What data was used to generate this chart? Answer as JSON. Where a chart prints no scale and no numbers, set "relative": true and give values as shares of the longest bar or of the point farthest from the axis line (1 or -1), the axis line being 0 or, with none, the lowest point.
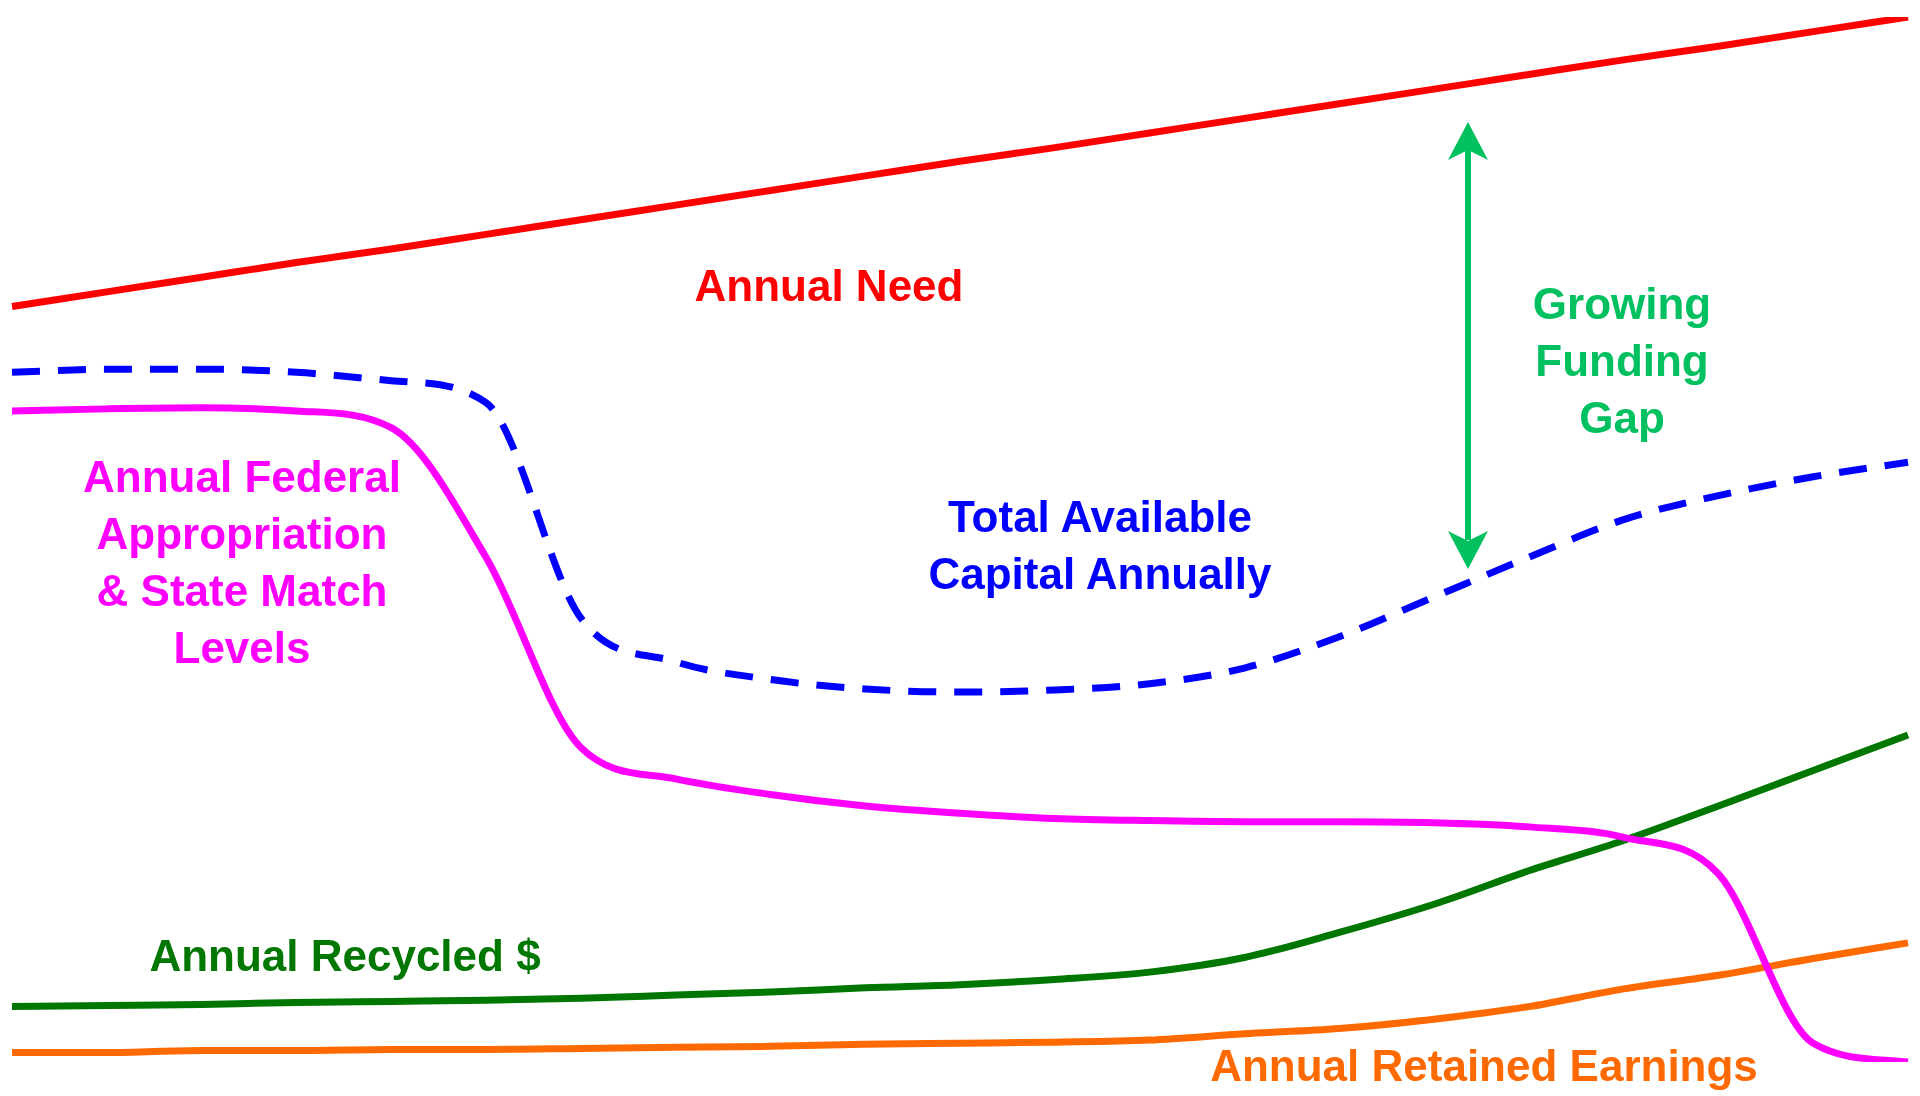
{
  "chart_data": {
    "type": "line",
    "relative": true,
    "legend": false,
    "categories": [
      null,
      null,
      null,
      null,
      null,
      null,
      null,
      null,
      null,
      null,
      null,
      null,
      null,
      null,
      null,
      null,
      null,
      null,
      null,
      null,
      null
    ],
    "series": [
      {
        "name": "Annual Need",
        "color": "#ff0000",
        "values": [
          0.723,
          0.737,
          0.751,
          0.765,
          0.778,
          0.792,
          0.806,
          0.82,
          0.834,
          0.848,
          0.862,
          0.875,
          0.889,
          0.903,
          0.917,
          0.931,
          0.945,
          0.959,
          0.972,
          0.986,
          1
        ]
      },
      {
        "name": "Total Available Capital Annually",
        "color": "#0000ff",
        "line_style": "dashed",
        "values": [
          0.66,
          0.663,
          0.663,
          0.66,
          0.652,
          0.631,
          0.425,
          0.383,
          0.366,
          0.357,
          0.354,
          0.356,
          0.362,
          0.377,
          0.407,
          0.445,
          0.483,
          0.519,
          0.542,
          0.56,
          0.574
        ]
      },
      {
        "name": "Annual Federal Appropriation & State Match Levels",
        "color": "#ff00ff",
        "values": [
          0.623,
          0.625,
          0.626,
          0.623,
          0.607,
          0.483,
          0.301,
          0.271,
          0.256,
          0.245,
          0.238,
          0.233,
          0.231,
          0.23,
          0.23,
          0.229,
          0.225,
          0.215,
          0.18,
          0.018,
          0
        ]
      },
      {
        "name": "Annual Recycled $",
        "color": "#007700",
        "values": [
          0.053,
          0.054,
          0.055,
          0.057,
          0.058,
          0.059,
          0.061,
          0.064,
          0.067,
          0.071,
          0.074,
          0.079,
          0.086,
          0.1,
          0.124,
          0.151,
          0.183,
          0.212,
          0.245,
          0.279,
          0.313
        ]
      },
      {
        "name": "Annual Retained Earnings",
        "color": "#ff6a00",
        "values": [
          0.009,
          0.009,
          0.011,
          0.011,
          0.012,
          0.012,
          0.013,
          0.014,
          0.015,
          0.017,
          0.018,
          0.019,
          0.021,
          0.027,
          0.032,
          0.041,
          0.053,
          0.07,
          0.083,
          0.099,
          0.114
        ]
      }
    ],
    "annotations": [
      "Growing Funding Gap"
    ]
  }
}
